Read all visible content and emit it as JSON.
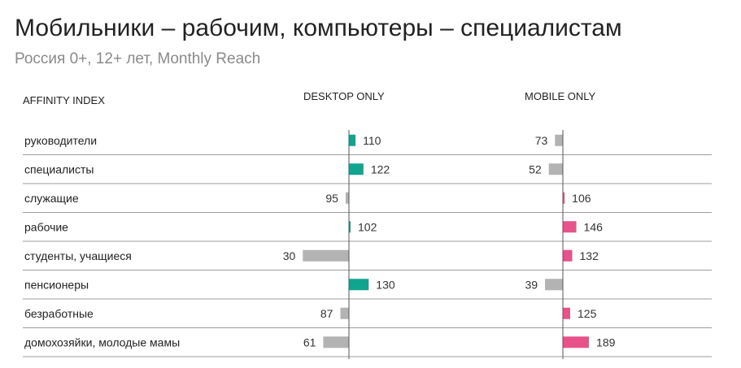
{
  "title": "Мобильники – рабочим, компьютеры – специалистам",
  "subtitle": "Россия 0+, 12+ лет, Monthly Reach",
  "headers": {
    "affinity": "AFFINITY INDEX",
    "desktop": "DESKTOP ONLY",
    "mobile": "MOBILE ONLY"
  },
  "colors": {
    "desktop_above": "#10a58f",
    "mobile_above": "#e8528a",
    "below": "#b3b3b3",
    "axis": "#555555",
    "rule": "#9e9e9e",
    "text": "#222222",
    "value_text": "#333333"
  },
  "chart_data": [
    {
      "type": "bar",
      "name": "DESKTOP ONLY",
      "baseline": 100,
      "categories": [
        "руководители",
        "специалисты",
        "служащие",
        "рабочие",
        "студенты, учащиеся",
        "пенсионеры",
        "безработные",
        "домохозяйки, молодые мамы"
      ],
      "values": [
        110,
        122,
        95,
        102,
        30,
        130,
        87,
        61
      ]
    },
    {
      "type": "bar",
      "name": "MOBILE ONLY",
      "baseline": 100,
      "categories": [
        "руководители",
        "специалисты",
        "служащие",
        "рабочие",
        "студенты, учащиеся",
        "пенсионеры",
        "безработные",
        "домохозяйки, молодые мамы"
      ],
      "values": [
        73,
        52,
        106,
        146,
        132,
        39,
        125,
        189
      ]
    }
  ]
}
